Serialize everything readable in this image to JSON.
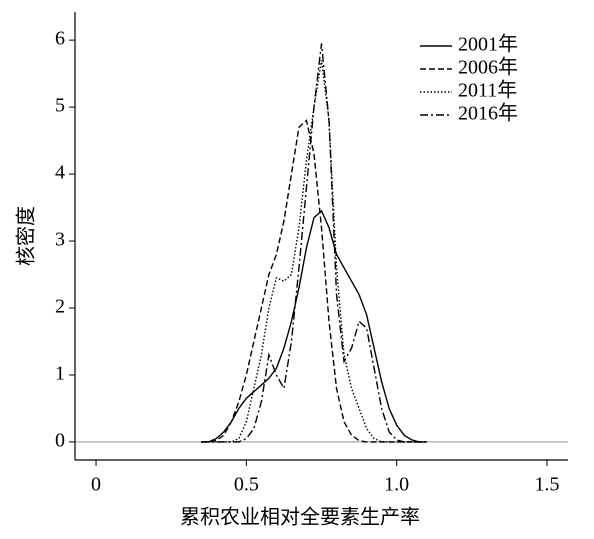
{
  "chart_data": {
    "type": "line",
    "xlabel": "累积农业相对全要素生产率",
    "ylabel": "核密度",
    "x": [
      0.35,
      0.375,
      0.4,
      0.425,
      0.45,
      0.475,
      0.5,
      0.525,
      0.55,
      0.575,
      0.6,
      0.625,
      0.65,
      0.675,
      0.7,
      0.725,
      0.75,
      0.775,
      0.8,
      0.825,
      0.85,
      0.875,
      0.9,
      0.925,
      0.95,
      0.975,
      1.0,
      1.025,
      1.05,
      1.075,
      1.1
    ],
    "series": [
      {
        "name": "2001年",
        "color": "#000000",
        "dash": "solid",
        "values": [
          0,
          0,
          0.05,
          0.15,
          0.3,
          0.5,
          0.65,
          0.75,
          0.85,
          0.95,
          1.1,
          1.4,
          1.8,
          2.3,
          2.9,
          3.35,
          3.45,
          3.2,
          2.8,
          2.6,
          2.4,
          2.2,
          1.9,
          1.4,
          0.9,
          0.5,
          0.25,
          0.1,
          0.03,
          0,
          0
        ]
      },
      {
        "name": "2006年",
        "color": "#000000",
        "dash": "dashed",
        "values": [
          0,
          0,
          0.02,
          0.1,
          0.3,
          0.6,
          1.0,
          1.5,
          2.0,
          2.5,
          2.8,
          3.3,
          4.0,
          4.7,
          4.8,
          4.3,
          3.2,
          1.8,
          0.8,
          0.3,
          0.1,
          0.02,
          0,
          0,
          0,
          0,
          0,
          0,
          0,
          0,
          0
        ]
      },
      {
        "name": "2011年",
        "color": "#000000",
        "dash": "dotted",
        "values": [
          0,
          0,
          0,
          0,
          0,
          0.05,
          0.3,
          0.8,
          1.3,
          2.0,
          2.45,
          2.4,
          2.5,
          3.2,
          4.2,
          5.0,
          5.7,
          4.8,
          2.6,
          1.3,
          0.8,
          0.5,
          0.2,
          0.05,
          0,
          0,
          0,
          0,
          0,
          0,
          0
        ]
      },
      {
        "name": "2016年",
        "color": "#000000",
        "dash": "dashdot",
        "values": [
          0,
          0,
          0,
          0,
          0,
          0,
          0.05,
          0.2,
          0.6,
          1.3,
          1.0,
          0.8,
          1.5,
          2.6,
          3.8,
          5.0,
          5.95,
          4.8,
          2.2,
          1.2,
          1.4,
          1.8,
          1.7,
          1.1,
          0.5,
          0.15,
          0.03,
          0,
          0,
          0,
          0
        ]
      }
    ],
    "xlim": [
      -0.07,
      1.57
    ],
    "ylim": [
      -0.27,
      6.42
    ],
    "xticks": [
      0,
      0.5,
      {
        "value": 1,
        "label": "1.0"
      },
      1.5
    ],
    "yticks": [
      0,
      1,
      2,
      3,
      4,
      5,
      6
    ],
    "legend": "upper right"
  }
}
